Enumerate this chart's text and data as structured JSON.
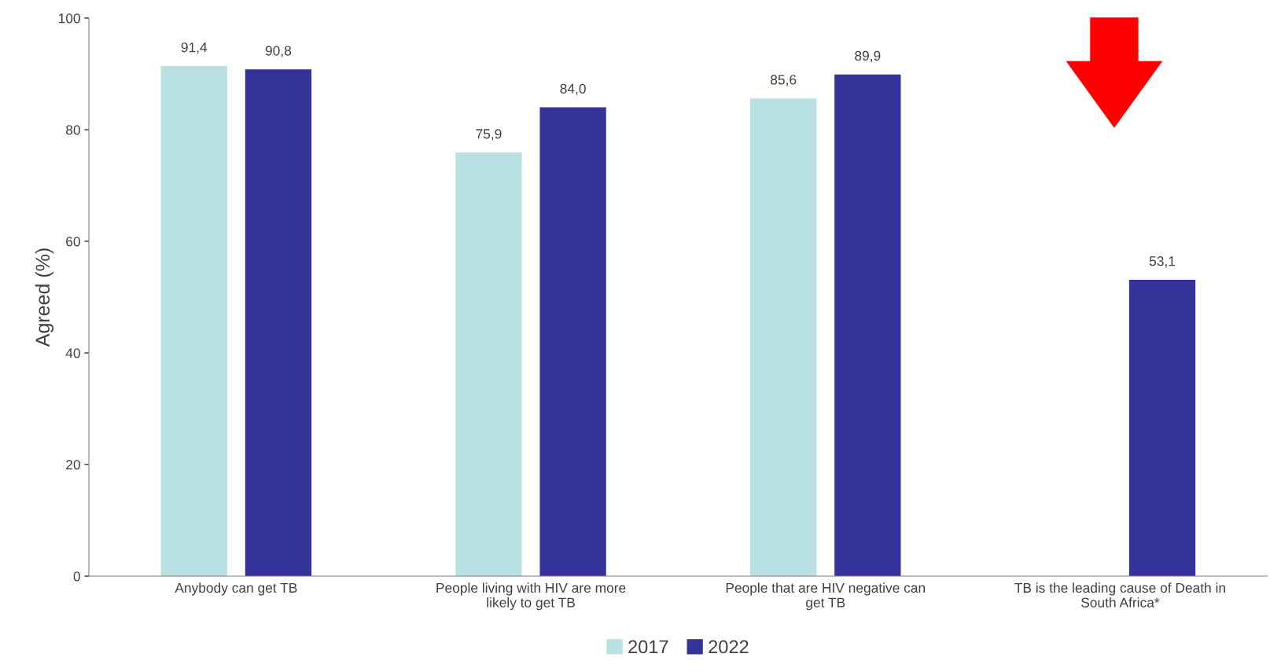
{
  "chart_data": {
    "type": "bar",
    "ylabel": "Agreed (%)",
    "categories": [
      "Anybody can get TB",
      "People living with HIV are more\nlikely to get TB",
      "People that are HIV negative can\nget TB",
      "TB is the leading cause of Death in\nSouth Africa*"
    ],
    "series": [
      {
        "name": "2017",
        "color": "#b9e0e3",
        "values": [
          91.4,
          75.9,
          85.6,
          null
        ],
        "value_labels": [
          "91,4",
          "75,9",
          "85,6",
          null
        ]
      },
      {
        "name": "2022",
        "color": "#343399",
        "values": [
          90.8,
          84.0,
          89.9,
          53.1
        ],
        "value_labels": [
          "90,8",
          "84,0",
          "89,9",
          "53,1"
        ]
      }
    ],
    "ylim": [
      0,
      100
    ],
    "yticks": [
      0,
      20,
      40,
      60,
      80,
      100
    ],
    "grid": false,
    "legend": "bottom"
  }
}
